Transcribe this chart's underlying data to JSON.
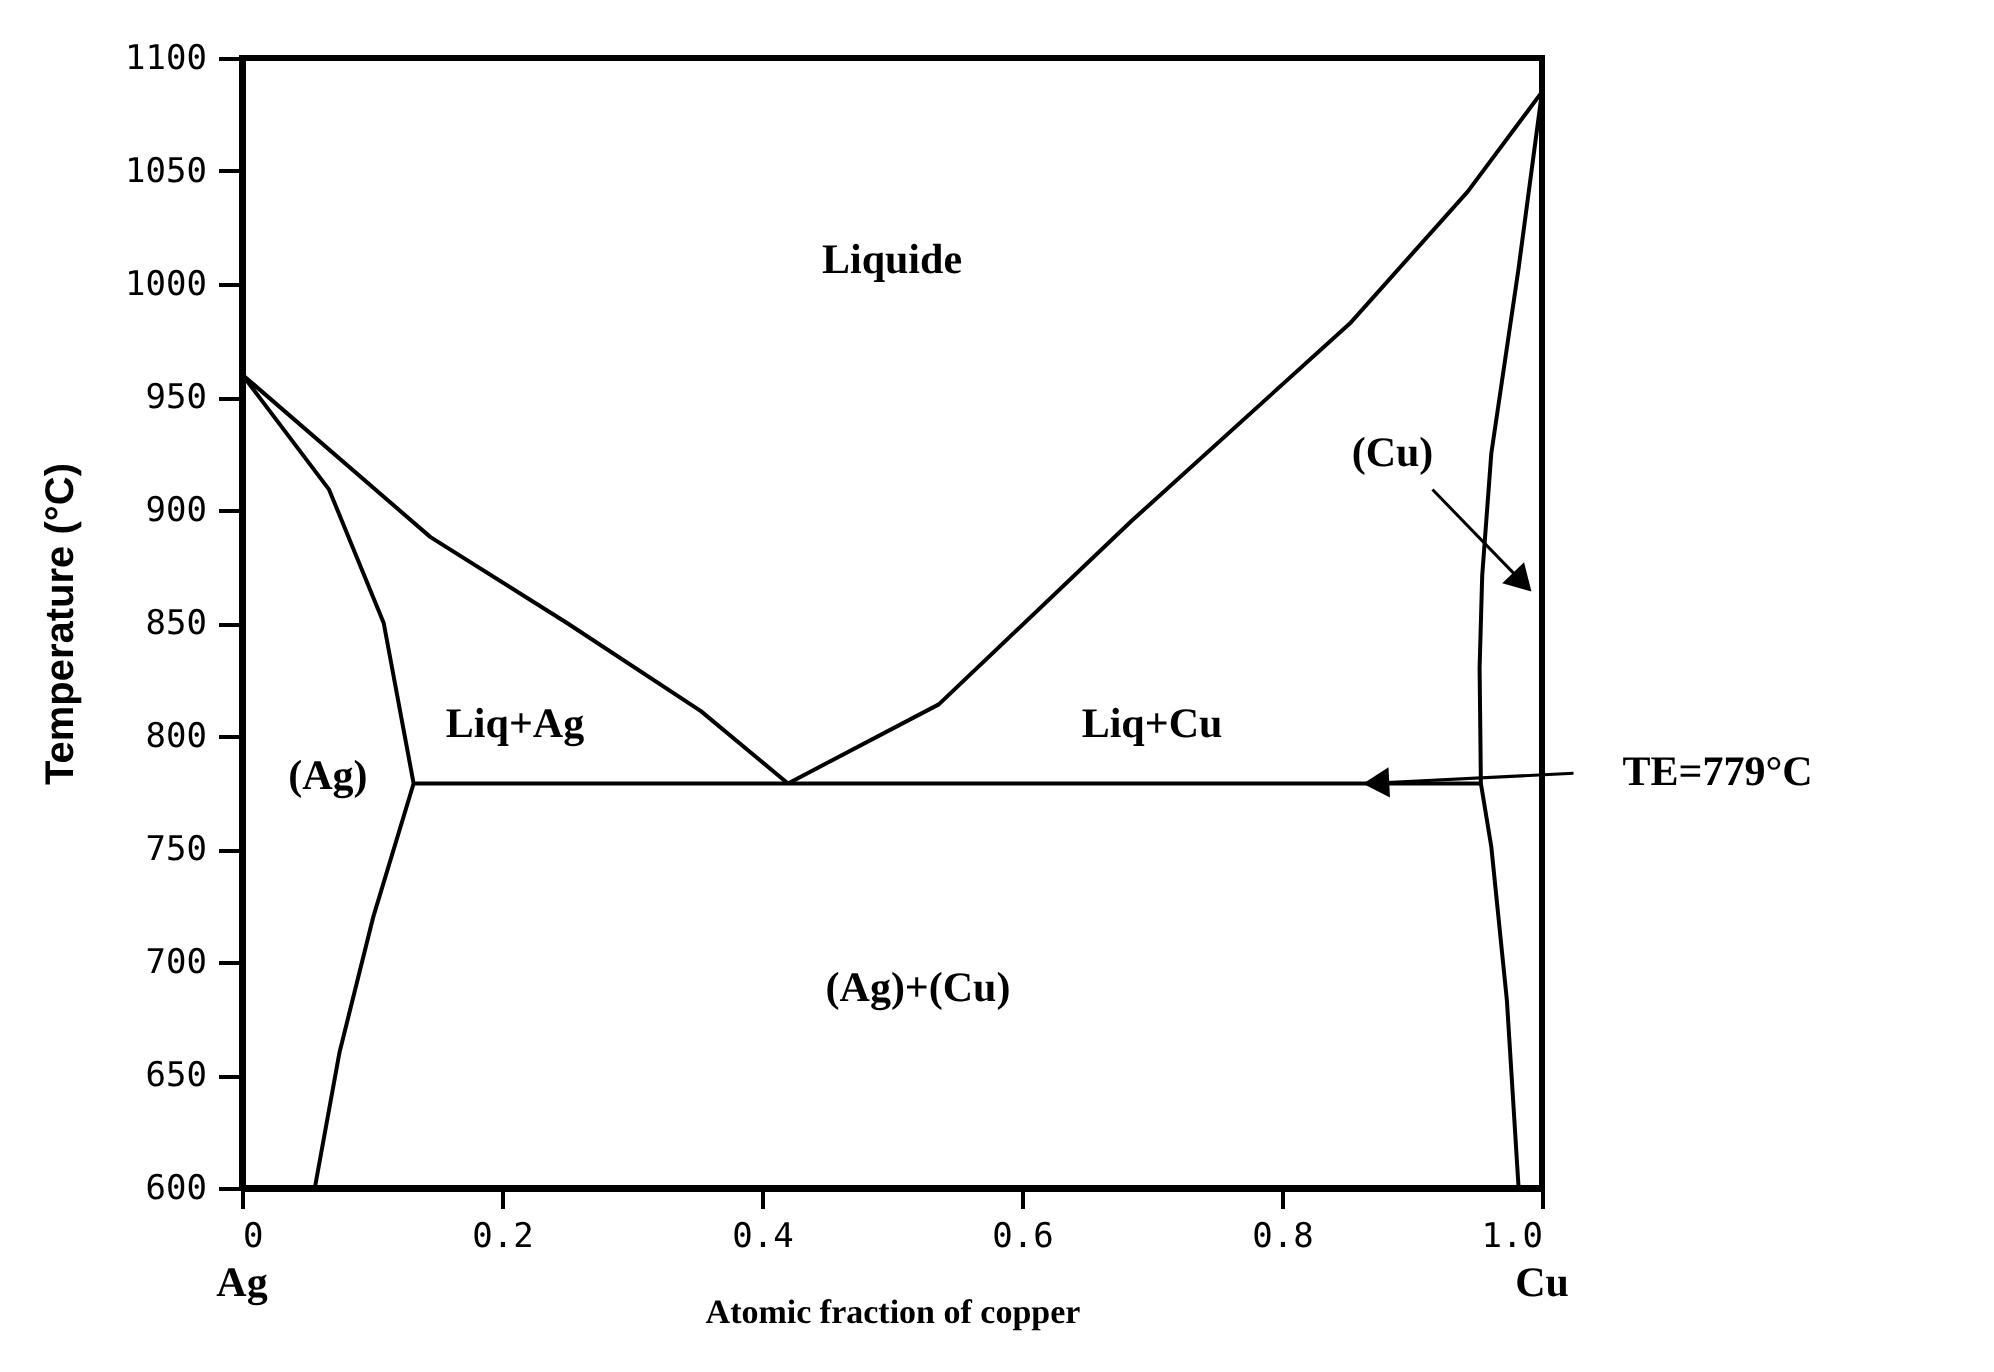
{
  "chart_data": {
    "type": "line",
    "xlabel": "Atomic fraction of copper",
    "ylabel": "Temperature (°C)",
    "xlim": [
      0,
      1
    ],
    "ylim": [
      600,
      1100
    ],
    "xticks": [
      0,
      0.2,
      0.4,
      0.6,
      0.8,
      {
        "value": 1,
        "label": "1.0"
      }
    ],
    "yticks": [
      600,
      650,
      700,
      750,
      800,
      850,
      900,
      950,
      1000,
      1050,
      1100
    ],
    "grid": false,
    "marker": "none",
    "line_style": "solid",
    "series": [
      {
        "color": "#000000",
        "x": [
          0.42,
          0.353,
          0.25,
          0.145,
          0,
          0.067,
          0.109,
          0.132,
          0.101,
          0.075,
          0.056
        ],
        "values": [
          779,
          811,
          850,
          888,
          960,
          909,
          850,
          779,
          720,
          660,
          600
        ]
      },
      {
        "color": "#000000",
        "x": [
          0.42,
          0.536,
          0.684,
          0.853,
          0.943,
          1.0,
          0.982,
          0.961,
          0.954,
          0.952,
          0.953,
          0.961,
          0.973,
          0.982
        ],
        "values": [
          779,
          814,
          895,
          983,
          1041,
          1085,
          1007,
          925,
          871,
          830,
          779,
          751,
          683,
          600
        ]
      },
      {
        "color": "#000000",
        "x": [
          0.132,
          0.953
        ],
        "values": [
          779,
          779
        ]
      }
    ],
    "annotations": [
      "Liquide",
      "Liq+Ag",
      "Liq+Cu",
      "(Ag)",
      "(Ag)+(Cu)",
      "(Cu)",
      "TE=779°C",
      "Ag",
      "Cu"
    ]
  }
}
